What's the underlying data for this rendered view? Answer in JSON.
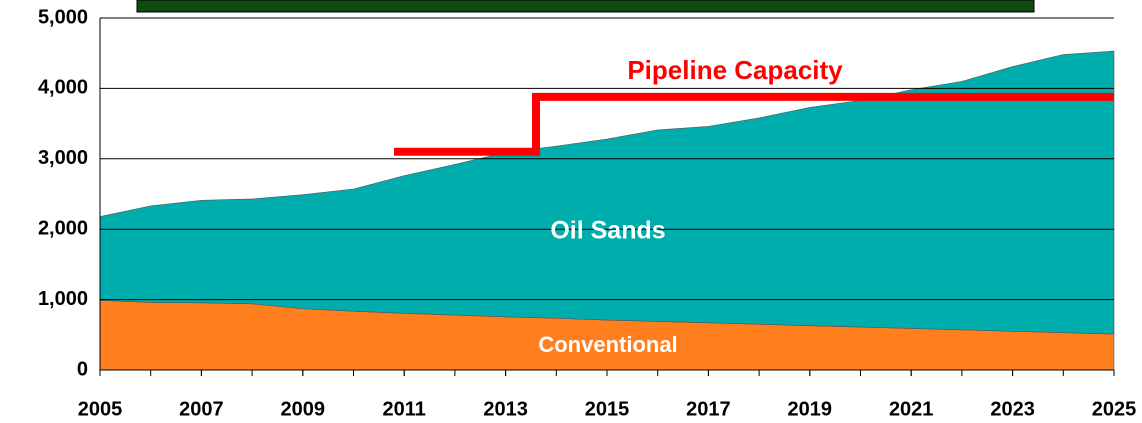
{
  "chart_data": {
    "type": "area",
    "x": [
      2005,
      2006,
      2007,
      2008,
      2009,
      2010,
      2011,
      2012,
      2013,
      2014,
      2015,
      2016,
      2017,
      2018,
      2019,
      2020,
      2021,
      2022,
      2023,
      2024,
      2025
    ],
    "series": [
      {
        "name": "Conventional",
        "color": "#ff7f1e",
        "values": [
          990,
          960,
          955,
          940,
          870,
          835,
          805,
          780,
          755,
          735,
          710,
          690,
          670,
          650,
          630,
          610,
          590,
          570,
          550,
          530,
          510
        ]
      },
      {
        "name": "Oil Sands",
        "color": "#00adad",
        "values": [
          1190,
          1370,
          1455,
          1490,
          1620,
          1735,
          1955,
          2140,
          2335,
          2445,
          2570,
          2720,
          2790,
          2930,
          3100,
          3220,
          3390,
          3530,
          3760,
          3950,
          4020
        ]
      },
      {
        "name": "Pipeline Capacity",
        "type": "line",
        "color": "#ff0000",
        "x": [
          2010.8,
          2013.6,
          2013.6,
          2025
        ],
        "values": [
          3100,
          3100,
          3880,
          3880
        ]
      }
    ],
    "stacked": true,
    "xlim": [
      2005,
      2025
    ],
    "xticks": [
      2005,
      2007,
      2009,
      2011,
      2013,
      2015,
      2017,
      2019,
      2021,
      2023,
      2025
    ],
    "ylim": [
      0,
      5000
    ],
    "yticks": [
      0,
      {
        "value": 1000,
        "label": "1,000"
      },
      {
        "value": 2000,
        "label": "2,000"
      },
      {
        "value": 3000,
        "label": "3,000"
      },
      {
        "value": 4000,
        "label": "4,000"
      },
      {
        "value": 5000,
        "label": "5,000"
      }
    ],
    "grid": true
  }
}
